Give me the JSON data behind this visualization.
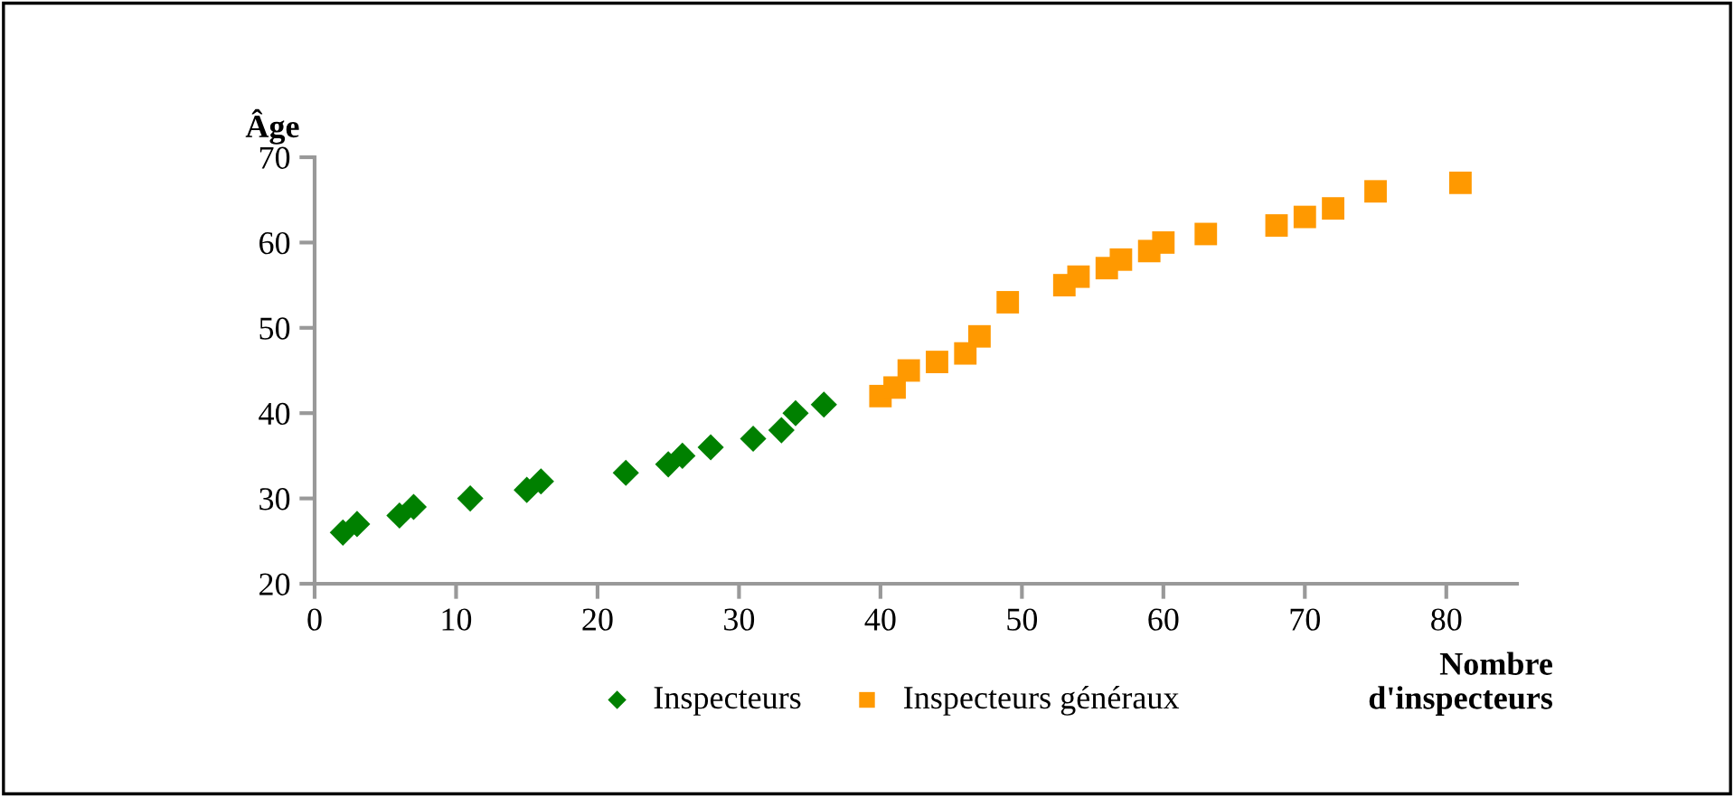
{
  "chart_data": {
    "type": "scatter",
    "xlabel": "Nombre\nd'inspecteurs",
    "ylabel": "Âge",
    "xlim": [
      0,
      85
    ],
    "xticks": [
      0,
      10,
      20,
      30,
      40,
      50,
      60,
      70,
      80
    ],
    "ylim": [
      20,
      70
    ],
    "yticks": [
      20,
      30,
      40,
      50,
      60,
      70
    ],
    "grid": false,
    "legend": "bottom",
    "series": [
      {
        "name": "Inspecteurs",
        "color": "#008000",
        "marker": "diamond",
        "x": [
          2,
          3,
          6,
          7,
          11,
          15,
          16,
          22,
          25,
          26,
          28,
          31,
          33,
          34,
          36
        ],
        "values": [
          26,
          27,
          28,
          29,
          30,
          31,
          32,
          33,
          34,
          35,
          36,
          37,
          38,
          40,
          41
        ]
      },
      {
        "name": "Inspecteurs généraux",
        "color": "#ff9900",
        "marker": "square",
        "x": [
          40,
          41,
          42,
          44,
          46,
          47,
          49,
          53,
          54,
          56,
          57,
          59,
          60,
          63,
          68,
          70,
          72,
          75,
          81
        ],
        "values": [
          42,
          43,
          45,
          46,
          47,
          49,
          53,
          55,
          56,
          57,
          58,
          59,
          60,
          61,
          62,
          63,
          64,
          66,
          67
        ]
      }
    ]
  }
}
